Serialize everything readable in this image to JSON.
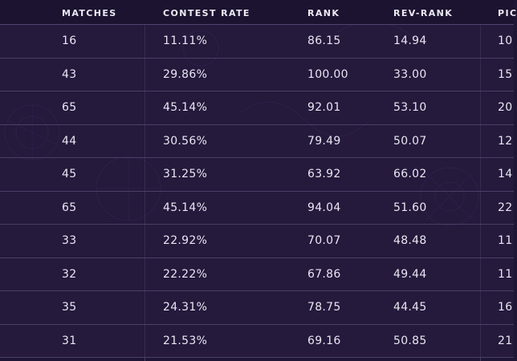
{
  "table": {
    "headers": {
      "matches": "MATCHES",
      "contest_rate": "CONTEST RATE",
      "rank": "RANK",
      "rev_rank": "REV-RANK",
      "pick": "PIC"
    },
    "rows": [
      {
        "matches": "16",
        "contest_rate": "11.11%",
        "rank": "86.15",
        "rev_rank": "14.94",
        "pick": "10"
      },
      {
        "matches": "43",
        "contest_rate": "29.86%",
        "rank": "100.00",
        "rev_rank": "33.00",
        "pick": "15"
      },
      {
        "matches": "65",
        "contest_rate": "45.14%",
        "rank": "92.01",
        "rev_rank": "53.10",
        "pick": "20"
      },
      {
        "matches": "44",
        "contest_rate": "30.56%",
        "rank": "79.49",
        "rev_rank": "50.07",
        "pick": "12"
      },
      {
        "matches": "45",
        "contest_rate": "31.25%",
        "rank": "63.92",
        "rev_rank": "66.02",
        "pick": "14"
      },
      {
        "matches": "65",
        "contest_rate": "45.14%",
        "rank": "94.04",
        "rev_rank": "51.60",
        "pick": "22"
      },
      {
        "matches": "33",
        "contest_rate": "22.92%",
        "rank": "70.07",
        "rev_rank": "48.48",
        "pick": "11"
      },
      {
        "matches": "32",
        "contest_rate": "22.22%",
        "rank": "67.86",
        "rev_rank": "49.44",
        "pick": "11"
      },
      {
        "matches": "35",
        "contest_rate": "24.31%",
        "rank": "78.75",
        "rev_rank": "44.45",
        "pick": "16"
      },
      {
        "matches": "31",
        "contest_rate": "21.53%",
        "rank": "69.16",
        "rev_rank": "50.85",
        "pick": "21"
      }
    ]
  },
  "colors": {
    "background": "#1f1534",
    "header_background": "#1b1330",
    "text": "#e9e6f2",
    "row_divider": "#4a4166"
  },
  "decoration": {
    "icon": "mystic-sigil-pattern"
  }
}
